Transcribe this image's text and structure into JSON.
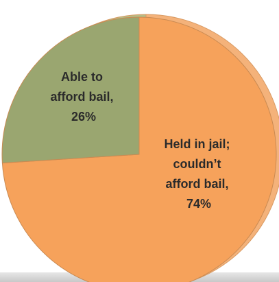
{
  "chart_data": {
    "type": "pie",
    "title": "",
    "slices": [
      {
        "label_lines": [
          "Held in jail;",
          "couldn’t",
          "afford bail,",
          "74%"
        ],
        "label": "Held in jail; couldn’t afford bail",
        "value": 74,
        "color": "#f6a25b"
      },
      {
        "label_lines": [
          "Able to",
          "afford bail,",
          "26%"
        ],
        "label": "Able to afford bail",
        "value": 26,
        "color": "#9aa670"
      }
    ],
    "shadow_color": "#f4b27a",
    "back_green_color": "#b6bd86"
  }
}
